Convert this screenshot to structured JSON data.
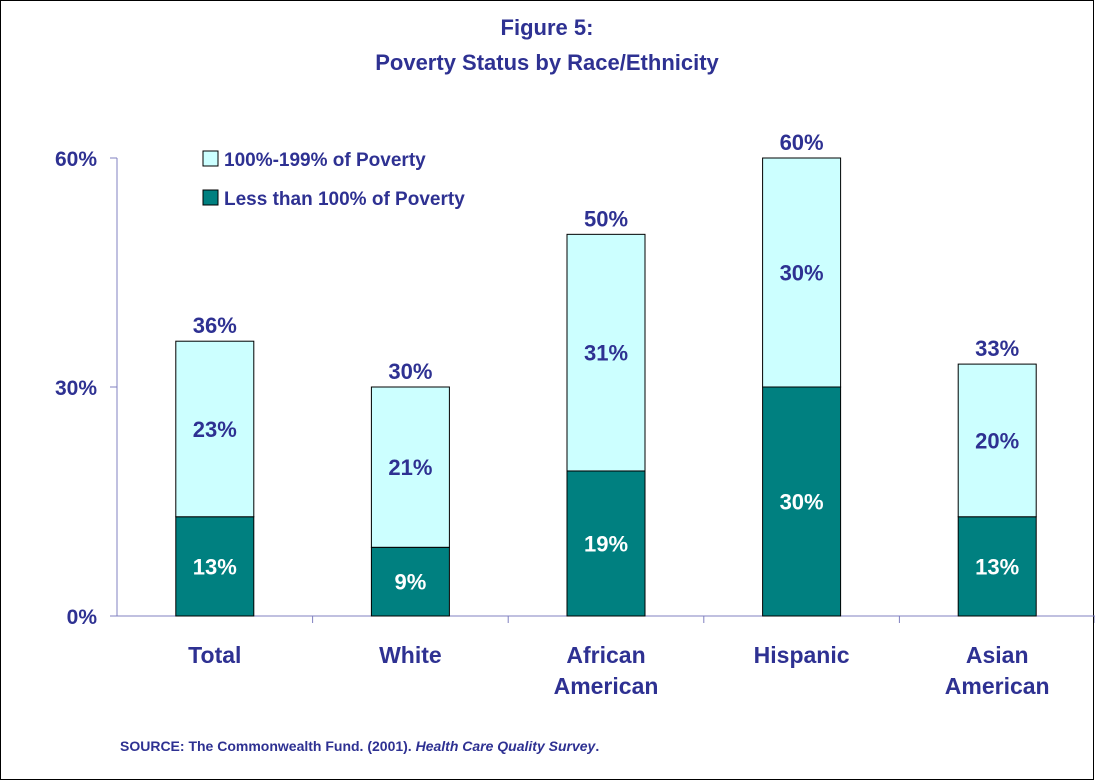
{
  "chart_data": {
    "type": "bar",
    "stacked": true,
    "title": "Figure 5:",
    "subtitle": "Poverty Status by Race/Ethnicity",
    "categories": [
      [
        "Total"
      ],
      [
        "White"
      ],
      [
        "African",
        "American"
      ],
      [
        "Hispanic"
      ],
      [
        "Asian",
        "American"
      ]
    ],
    "series": [
      {
        "name": "Less than 100% of Poverty",
        "color": "#008080",
        "label_color": "#ffffff",
        "values": [
          13,
          9,
          19,
          30,
          13
        ],
        "labels": [
          "13%",
          "9%",
          "19%",
          "30%",
          "13%"
        ]
      },
      {
        "name": "100%-199% of Poverty",
        "color": "#CCFFFF",
        "label_color": "#2E3192",
        "values": [
          23,
          21,
          31,
          30,
          20
        ],
        "labels": [
          "23%",
          "21%",
          "31%",
          "30%",
          "20%"
        ]
      }
    ],
    "totals": [
      36,
      30,
      50,
      60,
      33
    ],
    "total_labels": [
      "36%",
      "30%",
      "50%",
      "60%",
      "33%"
    ],
    "ylim": [
      0,
      60
    ],
    "yticks": [
      0,
      30,
      60
    ],
    "ytick_labels": [
      "0%",
      "30%",
      "60%"
    ],
    "legend_position": "top-left",
    "grid": false
  },
  "source": {
    "prefix": "SOURCE: The Commonwealth Fund. (2001). ",
    "italic": "Health Care Quality Survey",
    "suffix": "."
  },
  "colors": {
    "text": "#2E3192",
    "axis": "#8080C0",
    "bar_outline": "#000000"
  }
}
